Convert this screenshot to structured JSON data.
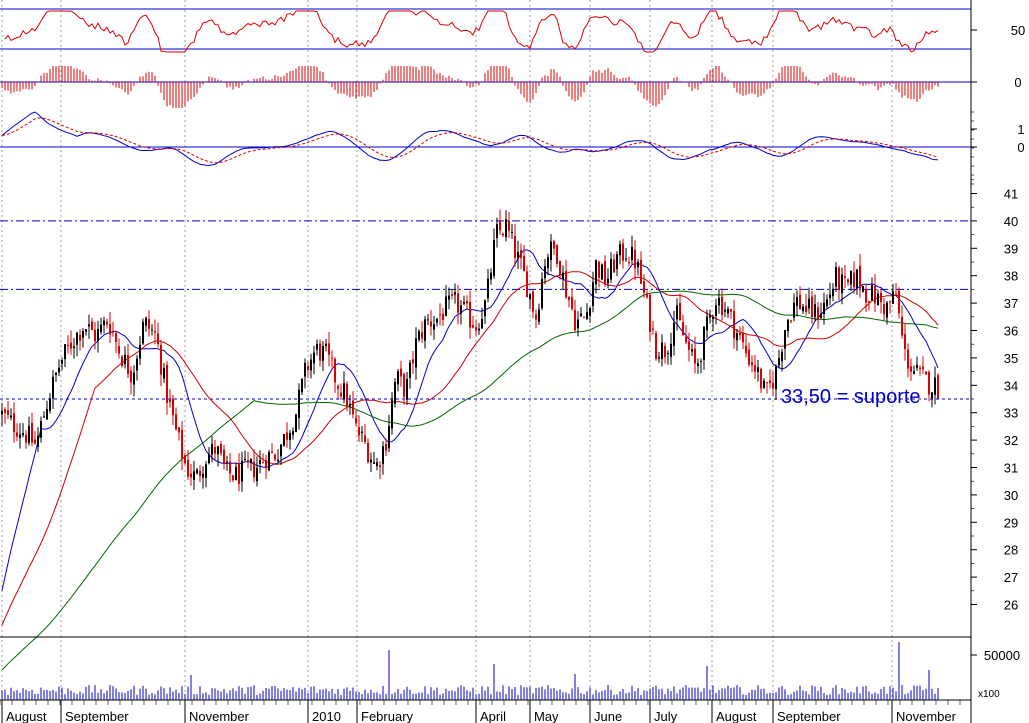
{
  "chart_data": {
    "type": "candlestick",
    "title": "",
    "months": [
      "August",
      "September",
      "November",
      "2010",
      "February",
      "April",
      "May",
      "June",
      "July",
      "August",
      "September",
      "November"
    ],
    "price_axis": {
      "ticks": [
        "26",
        "27",
        "28",
        "29",
        "30",
        "31",
        "32",
        "33",
        "34",
        "35",
        "36",
        "37",
        "38",
        "39",
        "40",
        "41"
      ],
      "range": [
        25.5,
        41.5
      ]
    },
    "volume_axis": {
      "ticks": [
        "50000"
      ],
      "multiplier_label": "x100"
    },
    "oscillator_axes": {
      "rsi_ticks": [
        "50"
      ],
      "histogram_ticks": [
        "0"
      ],
      "macd_ticks": [
        "1",
        "0"
      ]
    },
    "horizontal_levels": [
      {
        "value": 40.0,
        "style": "dash-dot",
        "color": "#0000cc"
      },
      {
        "value": 37.5,
        "style": "dash-dot",
        "color": "#0000cc"
      },
      {
        "value": 33.5,
        "style": "dashed",
        "color": "#0000cc"
      }
    ],
    "annotation": {
      "text": "33,50 = suporte",
      "color": "#0000cc"
    },
    "price_path": [
      [
        0,
        33.0
      ],
      [
        12,
        32.6
      ],
      [
        24,
        32.3
      ],
      [
        36,
        31.8
      ],
      [
        48,
        33.5
      ],
      [
        60,
        34.8
      ],
      [
        72,
        35.6
      ],
      [
        84,
        36.2
      ],
      [
        96,
        35.8
      ],
      [
        108,
        36.4
      ],
      [
        120,
        35.2
      ],
      [
        132,
        34.4
      ],
      [
        144,
        36.3
      ],
      [
        156,
        35.8
      ],
      [
        166,
        33.8
      ],
      [
        176,
        32.3
      ],
      [
        186,
        31.0
      ],
      [
        196,
        30.6
      ],
      [
        206,
        31.4
      ],
      [
        216,
        31.7
      ],
      [
        226,
        30.8
      ],
      [
        236,
        30.7
      ],
      [
        246,
        30.9
      ],
      [
        256,
        31.0
      ],
      [
        266,
        31.4
      ],
      [
        276,
        31.5
      ],
      [
        286,
        32.2
      ],
      [
        296,
        33.0
      ],
      [
        306,
        34.6
      ],
      [
        316,
        35.3
      ],
      [
        326,
        35.1
      ],
      [
        336,
        34.2
      ],
      [
        346,
        33.6
      ],
      [
        356,
        32.4
      ],
      [
        366,
        31.8
      ],
      [
        376,
        31.0
      ],
      [
        386,
        32.0
      ],
      [
        396,
        34.3
      ],
      [
        406,
        33.8
      ],
      [
        416,
        35.5
      ],
      [
        426,
        36.3
      ],
      [
        436,
        36.4
      ],
      [
        446,
        36.8
      ],
      [
        456,
        37.0
      ],
      [
        466,
        36.6
      ],
      [
        476,
        36.2
      ],
      [
        486,
        37.0
      ],
      [
        496,
        39.5
      ],
      [
        506,
        39.8
      ],
      [
        516,
        38.8
      ],
      [
        526,
        37.8
      ],
      [
        536,
        36.5
      ],
      [
        546,
        38.8
      ],
      [
        556,
        39.0
      ],
      [
        566,
        37.5
      ],
      [
        576,
        36.3
      ],
      [
        586,
        36.5
      ],
      [
        596,
        38.4
      ],
      [
        606,
        37.8
      ],
      [
        616,
        38.6
      ],
      [
        626,
        38.9
      ],
      [
        636,
        38.5
      ],
      [
        646,
        37.0
      ],
      [
        656,
        35.4
      ],
      [
        666,
        35.3
      ],
      [
        676,
        36.6
      ],
      [
        686,
        35.5
      ],
      [
        696,
        34.6
      ],
      [
        706,
        36.0
      ],
      [
        716,
        37.2
      ],
      [
        726,
        36.8
      ],
      [
        736,
        36.0
      ],
      [
        746,
        35.2
      ],
      [
        756,
        34.6
      ],
      [
        766,
        33.6
      ],
      [
        776,
        34.5
      ],
      [
        786,
        36.3
      ],
      [
        796,
        37.1
      ],
      [
        806,
        36.8
      ],
      [
        816,
        36.6
      ],
      [
        826,
        37.0
      ],
      [
        836,
        37.9
      ],
      [
        846,
        37.5
      ],
      [
        856,
        38.0
      ],
      [
        866,
        37.4
      ],
      [
        876,
        37.2
      ],
      [
        886,
        36.8
      ],
      [
        896,
        37.3
      ],
      [
        904,
        35.2
      ],
      [
        912,
        34.6
      ],
      [
        920,
        34.3
      ],
      [
        928,
        34.1
      ],
      [
        934,
        34.0
      ],
      [
        940,
        33.9
      ]
    ],
    "series": [
      {
        "name": "",
        "kind": "moving-average",
        "color": "#0000cc"
      },
      {
        "name": "",
        "kind": "moving-average",
        "color": "#cc0000"
      },
      {
        "name": "",
        "kind": "moving-average",
        "color": "#006600"
      }
    ]
  }
}
